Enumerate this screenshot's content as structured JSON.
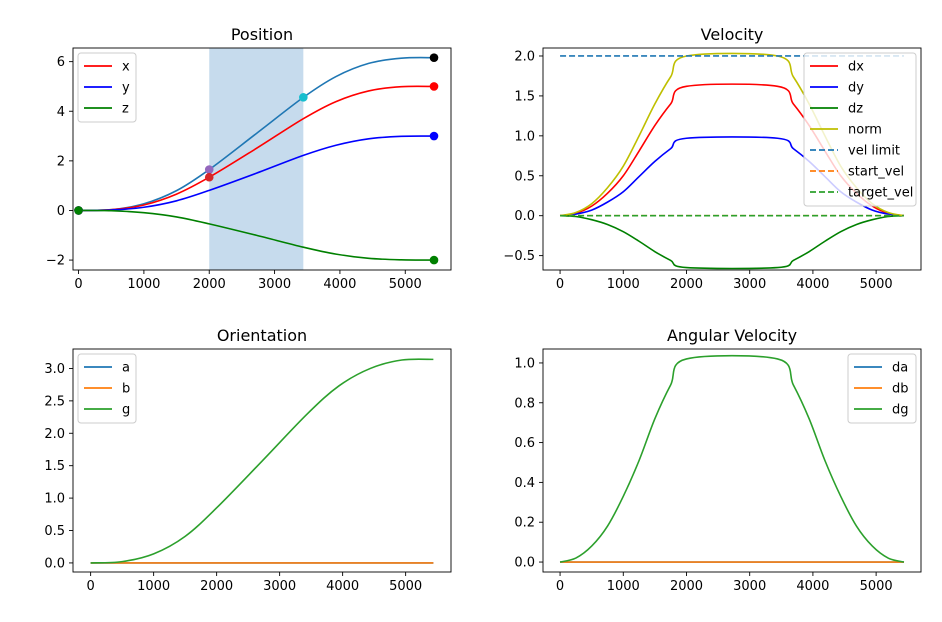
{
  "chart_data": [
    {
      "type": "line",
      "title": "Position",
      "xlim": [
        -85,
        5700
      ],
      "ylim": [
        -2.4,
        6.55
      ],
      "xticks": [
        0,
        1000,
        2000,
        3000,
        4000,
        5000
      ],
      "xtick_labels": [
        "0",
        "1000",
        "2000",
        "3000",
        "4000",
        "5000"
      ],
      "yticks": [
        -2,
        0,
        2,
        4,
        6
      ],
      "ytick_labels": [
        "−2",
        "0",
        "2",
        "4",
        "6"
      ],
      "legend_position": "upper-left",
      "shaded_region": {
        "x_from": 2000,
        "x_to": 3440,
        "color": "#c6dbed"
      },
      "series": [
        {
          "name": "",
          "color": "#1f77b4",
          "dash": false,
          "x": [
            0,
            500,
            1000,
            1500,
            2000,
            2720,
            3440,
            3940,
            4440,
            4940,
            5440
          ],
          "y": [
            0,
            0.03,
            0.27,
            0.8,
            1.65,
            3.1,
            4.56,
            5.4,
            5.93,
            6.14,
            6.16
          ]
        },
        {
          "name": "x",
          "color": "#ff0000",
          "dash": false,
          "x": [
            0,
            500,
            1000,
            1500,
            2000,
            2720,
            3440,
            3940,
            4440,
            4940,
            5440
          ],
          "y": [
            0,
            0.03,
            0.22,
            0.66,
            1.34,
            2.5,
            3.7,
            4.39,
            4.82,
            4.99,
            5.0
          ]
        },
        {
          "name": "y",
          "color": "#0000ff",
          "dash": false,
          "x": [
            0,
            500,
            1000,
            1500,
            2000,
            2720,
            3440,
            3940,
            4440,
            4940,
            5440
          ],
          "y": [
            0,
            0.02,
            0.13,
            0.39,
            0.81,
            1.5,
            2.22,
            2.63,
            2.89,
            2.99,
            3.0
          ]
        },
        {
          "name": "z",
          "color": "#008000",
          "dash": false,
          "x": [
            0,
            500,
            1000,
            1500,
            2000,
            2720,
            3440,
            3940,
            4440,
            4940,
            5440
          ],
          "y": [
            0,
            -0.01,
            -0.09,
            -0.26,
            -0.54,
            -1.0,
            -1.48,
            -1.76,
            -1.93,
            -1.99,
            -2.0
          ]
        }
      ],
      "markers": [
        {
          "x": 0,
          "y": 0,
          "color": "#1f77b4"
        },
        {
          "x": 0,
          "y": 0,
          "color": "#ff0000"
        },
        {
          "x": 0,
          "y": 0,
          "color": "#0000ff"
        },
        {
          "x": 0,
          "y": 0,
          "color": "#008000"
        },
        {
          "x": 2000,
          "y": 1.65,
          "color": "#9467bd"
        },
        {
          "x": 2000,
          "y": 1.34,
          "color": "#d62728"
        },
        {
          "x": 3440,
          "y": 4.56,
          "color": "#17becf"
        },
        {
          "x": 5440,
          "y": 6.16,
          "color": "#000000"
        },
        {
          "x": 5440,
          "y": 5.0,
          "color": "#ff0000"
        },
        {
          "x": 5440,
          "y": 3.0,
          "color": "#0000ff"
        },
        {
          "x": 5440,
          "y": -2.0,
          "color": "#008000"
        }
      ]
    },
    {
      "type": "line",
      "title": "Velocity",
      "xlim": [
        -270,
        5710
      ],
      "ylim": [
        -0.68,
        2.1
      ],
      "xticks": [
        0,
        1000,
        2000,
        3000,
        4000,
        5000
      ],
      "xtick_labels": [
        "0",
        "1000",
        "2000",
        "3000",
        "4000",
        "5000"
      ],
      "yticks": [
        -0.5,
        0.0,
        0.5,
        1.0,
        1.5,
        2.0
      ],
      "ytick_labels": [
        "−0.5",
        "0.0",
        "0.5",
        "1.0",
        "1.5",
        "2.0"
      ],
      "legend_position": "upper-right",
      "series": [
        {
          "name": "dx",
          "color": "#ff0000",
          "dash": false,
          "x": [
            0,
            250,
            500,
            750,
            1000,
            1250,
            1500,
            1750,
            2000,
            3440,
            3690,
            3940,
            4190,
            4440,
            4690,
            4940,
            5190,
            5440
          ],
          "y": [
            0,
            0.03,
            0.12,
            0.28,
            0.5,
            0.81,
            1.13,
            1.4,
            1.62,
            1.62,
            1.4,
            1.13,
            0.81,
            0.5,
            0.28,
            0.12,
            0.03,
            0
          ]
        },
        {
          "name": "dy",
          "color": "#0000ff",
          "dash": false,
          "x": [
            0,
            250,
            500,
            750,
            1000,
            1250,
            1500,
            1750,
            2000,
            3440,
            3690,
            3940,
            4190,
            4440,
            4690,
            4940,
            5190,
            5440
          ],
          "y": [
            0,
            0.02,
            0.07,
            0.17,
            0.3,
            0.49,
            0.68,
            0.84,
            0.97,
            0.97,
            0.84,
            0.68,
            0.49,
            0.3,
            0.17,
            0.07,
            0.02,
            0
          ]
        },
        {
          "name": "dz",
          "color": "#008000",
          "dash": false,
          "x": [
            0,
            250,
            500,
            750,
            1000,
            1250,
            1500,
            1750,
            2000,
            3440,
            3690,
            3940,
            4190,
            4440,
            4690,
            4940,
            5190,
            5440
          ],
          "y": [
            0,
            -0.01,
            -0.05,
            -0.11,
            -0.2,
            -0.32,
            -0.45,
            -0.56,
            -0.65,
            -0.65,
            -0.56,
            -0.45,
            -0.32,
            -0.2,
            -0.11,
            -0.05,
            -0.01,
            0
          ]
        },
        {
          "name": "norm",
          "color": "#bfbf00",
          "dash": false,
          "x": [
            0,
            250,
            500,
            750,
            1000,
            1250,
            1500,
            1750,
            2000,
            3440,
            3690,
            3940,
            4190,
            4440,
            4690,
            4940,
            5190,
            5440
          ],
          "y": [
            0,
            0.04,
            0.15,
            0.35,
            0.62,
            1.0,
            1.4,
            1.74,
            2.0,
            2.0,
            1.74,
            1.4,
            1.0,
            0.62,
            0.35,
            0.15,
            0.04,
            0
          ]
        },
        {
          "name": "vel limit",
          "color": "#1f77b4",
          "dash": true,
          "x": [
            0,
            5440
          ],
          "y": [
            2.0,
            2.0
          ]
        },
        {
          "name": "start_vel",
          "color": "#ff7f0e",
          "dash": true,
          "x": [
            0,
            5440
          ],
          "y": [
            0,
            0
          ]
        },
        {
          "name": "target_vel",
          "color": "#2ca02c",
          "dash": true,
          "x": [
            0,
            5440
          ],
          "y": [
            0,
            0
          ]
        }
      ]
    },
    {
      "type": "line",
      "title": "Orientation",
      "xlim": [
        -280,
        5720
      ],
      "ylim": [
        -0.14,
        3.3
      ],
      "xticks": [
        0,
        1000,
        2000,
        3000,
        4000,
        5000
      ],
      "xtick_labels": [
        "0",
        "1000",
        "2000",
        "3000",
        "4000",
        "5000"
      ],
      "yticks": [
        0.0,
        0.5,
        1.0,
        1.5,
        2.0,
        2.5,
        3.0
      ],
      "ytick_labels": [
        "0.0",
        "0.5",
        "1.0",
        "1.5",
        "2.0",
        "2.5",
        "3.0"
      ],
      "legend_position": "upper-left",
      "series": [
        {
          "name": "a",
          "color": "#1f77b4",
          "dash": false,
          "x": [
            0,
            5440
          ],
          "y": [
            0,
            0
          ]
        },
        {
          "name": "b",
          "color": "#ff7f0e",
          "dash": false,
          "x": [
            0,
            5440
          ],
          "y": [
            0,
            0
          ]
        },
        {
          "name": "g",
          "color": "#2ca02c",
          "dash": false,
          "x": [
            0,
            500,
            1000,
            1500,
            2000,
            2720,
            3440,
            3940,
            4440,
            4940,
            5440
          ],
          "y": [
            0,
            0.02,
            0.14,
            0.41,
            0.85,
            1.57,
            2.3,
            2.73,
            3.0,
            3.13,
            3.14
          ]
        }
      ]
    },
    {
      "type": "line",
      "title": "Angular Velocity",
      "xlim": [
        -270,
        5710
      ],
      "ylim": [
        -0.05,
        1.07
      ],
      "xticks": [
        0,
        1000,
        2000,
        3000,
        4000,
        5000
      ],
      "xtick_labels": [
        "0",
        "1000",
        "2000",
        "3000",
        "4000",
        "5000"
      ],
      "yticks": [
        0.0,
        0.2,
        0.4,
        0.6,
        0.8,
        1.0
      ],
      "ytick_labels": [
        "0.0",
        "0.2",
        "0.4",
        "0.6",
        "0.8",
        "1.0"
      ],
      "legend_position": "upper-right",
      "series": [
        {
          "name": "da",
          "color": "#1f77b4",
          "dash": false,
          "x": [
            0,
            5440
          ],
          "y": [
            0,
            0
          ]
        },
        {
          "name": "db",
          "color": "#ff7f0e",
          "dash": false,
          "x": [
            0,
            5440
          ],
          "y": [
            0,
            0
          ]
        },
        {
          "name": "dg",
          "color": "#2ca02c",
          "dash": false,
          "x": [
            0,
            250,
            500,
            750,
            1000,
            1250,
            1500,
            1750,
            2000,
            3440,
            3690,
            3940,
            4190,
            4440,
            4690,
            4940,
            5190,
            5440
          ],
          "y": [
            0,
            0.02,
            0.08,
            0.18,
            0.33,
            0.51,
            0.72,
            0.89,
            1.02,
            1.02,
            0.89,
            0.72,
            0.51,
            0.33,
            0.18,
            0.08,
            0.02,
            0
          ]
        }
      ]
    }
  ]
}
